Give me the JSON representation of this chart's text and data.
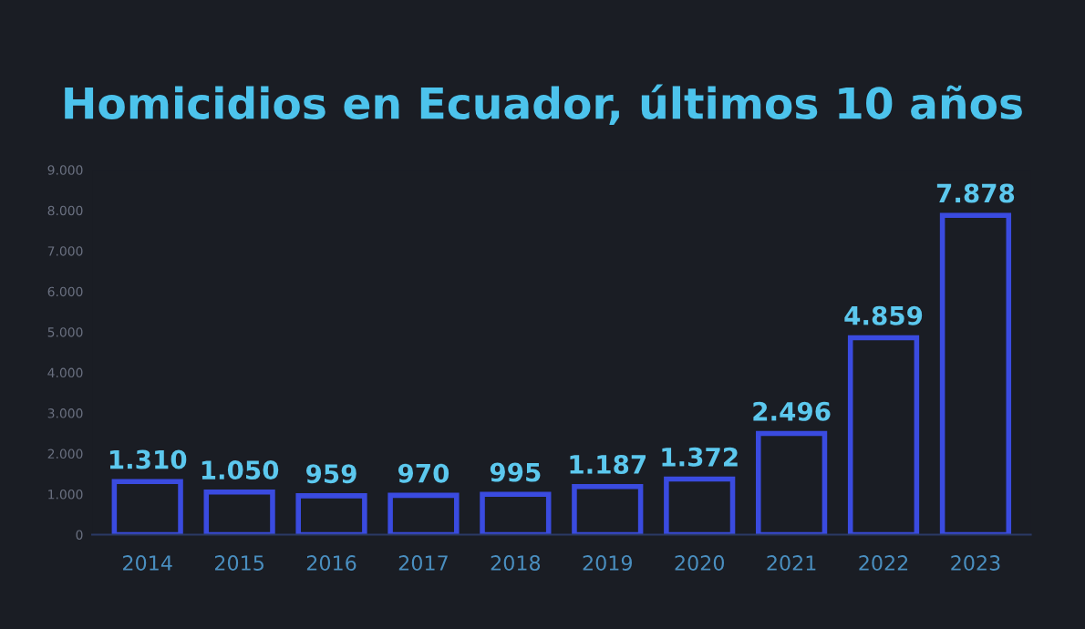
{
  "chart_data": {
    "type": "bar",
    "title": "Homicidios en Ecuador, últimos 10 años",
    "categories": [
      "2014",
      "2015",
      "2016",
      "2017",
      "2018",
      "2019",
      "2020",
      "2021",
      "2022",
      "2023"
    ],
    "values": [
      1310,
      1050,
      959,
      970,
      995,
      1187,
      1372,
      2496,
      4859,
      7878
    ],
    "value_labels": [
      "1.310",
      "1.050",
      "959",
      "970",
      "995",
      "1.187",
      "1.372",
      "2.496",
      "4.859",
      "7.878"
    ],
    "color": "#3a4be0",
    "ylim": [
      0,
      9000
    ],
    "yticks": [
      {
        "value": 0,
        "label": "0"
      },
      {
        "value": 1000,
        "label": "1.000"
      },
      {
        "value": 2000,
        "label": "2.000"
      },
      {
        "value": 3000,
        "label": "3.000"
      },
      {
        "value": 4000,
        "label": "4.000"
      },
      {
        "value": 5000,
        "label": "5.000"
      },
      {
        "value": 6000,
        "label": "6.000"
      },
      {
        "value": 7000,
        "label": "7.000"
      },
      {
        "value": 8000,
        "label": "8.000"
      },
      {
        "value": 9000,
        "label": "9.000"
      }
    ],
    "grid": false,
    "legend": false
  }
}
